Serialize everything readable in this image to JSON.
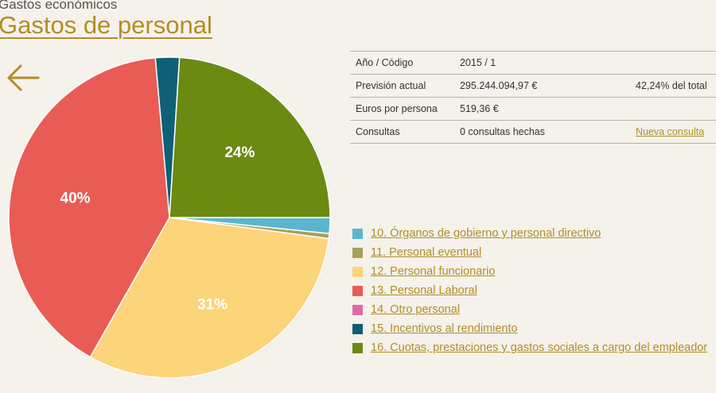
{
  "header": {
    "breadcrumb": "Gastos económicos",
    "title": "Gastos de personal",
    "back_icon": "arrow-left-icon"
  },
  "info": {
    "rows": [
      {
        "label": "Año / Código",
        "value": "2015 / 1",
        "extra": ""
      },
      {
        "label": "Previsión actual",
        "value": "295.244.094,97 €",
        "extra": "42,24% del total"
      },
      {
        "label": "Euros por persona",
        "value": "519,36 €",
        "extra": ""
      },
      {
        "label": "Consultas",
        "value": "0 consultas hechas",
        "extra": "Nueva consulta"
      }
    ]
  },
  "chart_data": {
    "type": "pie",
    "title": "",
    "slices": [
      {
        "label": "10. Órganos de gobierno y personal directivo",
        "value": 1.6,
        "color": "#5bb5cf",
        "data_label": ""
      },
      {
        "label": "11. Personal eventual",
        "value": 0.5,
        "color": "#a6a05a",
        "data_label": ""
      },
      {
        "label": "12. Personal funcionario",
        "value": 31.1,
        "color": "#fcd47a",
        "data_label": "31%"
      },
      {
        "label": "13. Personal Laboral",
        "value": 40.4,
        "color": "#e85c55",
        "data_label": "40%"
      },
      {
        "label": "14. Otro personal",
        "value": 0.0,
        "color": "#e06aa8",
        "data_label": ""
      },
      {
        "label": "15. Incentivos al rendimiento",
        "value": 2.4,
        "color": "#0f6076",
        "data_label": ""
      },
      {
        "label": "16. Cuotas, prestaciones y gastos sociales a cargo del empleador",
        "value": 24.0,
        "color": "#6a8a12",
        "data_label": "24%"
      }
    ]
  }
}
